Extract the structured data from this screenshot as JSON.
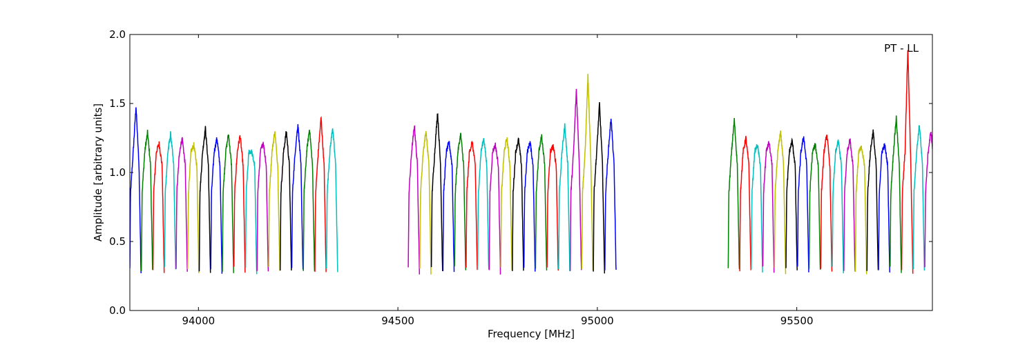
{
  "chart_data": {
    "type": "line",
    "title": "",
    "xlabel": "Frequency [MHz]",
    "ylabel": "Amplitude [arbitrary units]",
    "xlim": [
      93828,
      95840
    ],
    "ylim": [
      0.0,
      2.0
    ],
    "xticks": [
      94000,
      94500,
      95000,
      95500
    ],
    "yticks": [
      0.0,
      0.5,
      1.0,
      1.5,
      2.0
    ],
    "ytick_labels": [
      "0.0",
      "0.5",
      "1.0",
      "1.5",
      "2.0"
    ],
    "annotation": "PT - LL",
    "colors": [
      "#0000ff",
      "#008000",
      "#ff0000",
      "#00bfbf",
      "#bf00bf",
      "#bfbf00",
      "#000000"
    ],
    "bands": [
      {
        "start": 93828,
        "width": 29,
        "count": 18,
        "peaks": [
          1.48,
          1.29,
          1.21,
          1.28,
          1.25,
          1.2,
          1.32,
          1.25,
          1.28,
          1.27,
          1.15,
          1.22,
          1.3,
          1.3,
          1.35,
          1.32,
          1.4,
          1.33
        ]
      },
      {
        "start": 94526,
        "width": 29,
        "count": 18,
        "peaks": [
          1.34,
          1.3,
          1.44,
          1.22,
          1.28,
          1.22,
          1.25,
          1.2,
          1.25,
          1.24,
          1.22,
          1.26,
          1.19,
          1.34,
          1.6,
          1.7,
          1.5,
          1.4
        ]
      },
      {
        "start": 95328,
        "width": 29,
        "count": 18,
        "peaks": [
          1.38,
          1.25,
          1.2,
          1.22,
          1.3,
          1.23,
          1.26,
          1.2,
          1.28,
          1.23,
          1.24,
          1.18,
          1.3,
          1.2,
          1.4,
          1.9,
          1.35,
          1.3
        ]
      }
    ]
  }
}
